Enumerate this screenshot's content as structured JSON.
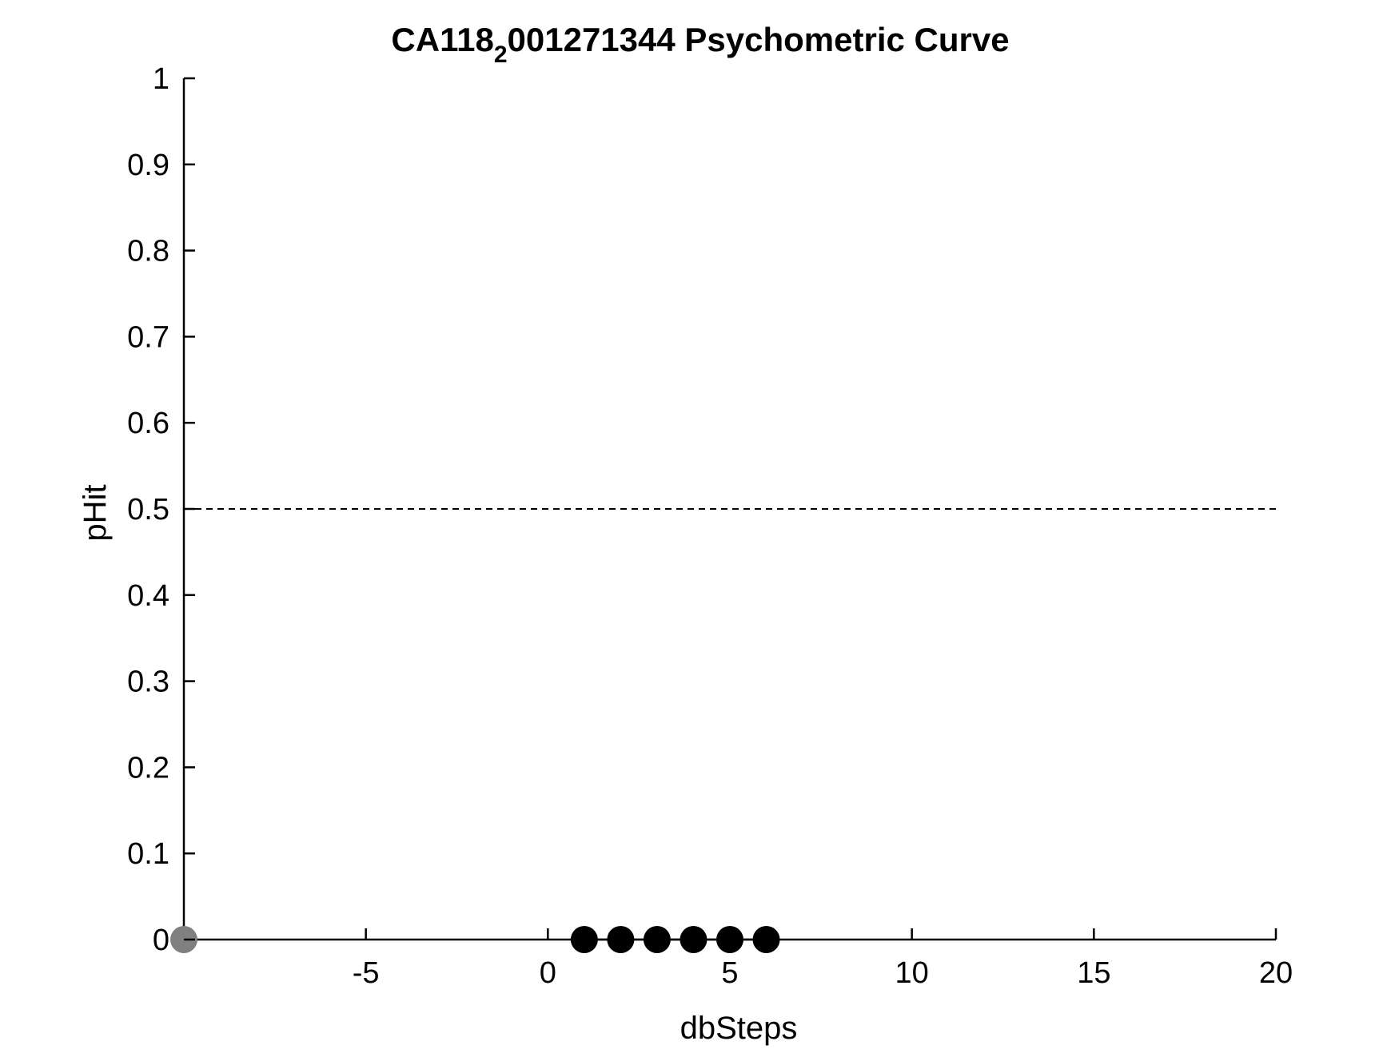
{
  "chart_data": {
    "type": "scatter",
    "title_main": "CA118",
    "title_subscript": "2",
    "title_rest": "001271344 Psychometric Curve",
    "xlabel": "dbSteps",
    "ylabel": "pHit",
    "xlim": [
      -10,
      20
    ],
    "ylim": [
      0,
      1
    ],
    "x_ticks": [
      -5,
      0,
      5,
      10,
      15,
      20
    ],
    "y_ticks": [
      0,
      0.1,
      0.2,
      0.3,
      0.4,
      0.5,
      0.6,
      0.7,
      0.8,
      0.9,
      1
    ],
    "x_tick_labels": [
      "-5",
      "0",
      "5",
      "10",
      "15",
      "20"
    ],
    "y_tick_labels": [
      "0",
      "0.1",
      "0.2",
      "0.3",
      "0.4",
      "0.5",
      "0.6",
      "0.7",
      "0.8",
      "0.9",
      "1"
    ],
    "reference_line": {
      "y": 0.5,
      "style": "dashed",
      "color": "#000000"
    },
    "series": [
      {
        "color": "#808080",
        "line": false,
        "points": [
          {
            "x": -10,
            "y": 0
          }
        ]
      },
      {
        "color": "#000000",
        "line": true,
        "points": [
          {
            "x": 1,
            "y": 0
          },
          {
            "x": 2,
            "y": 0
          },
          {
            "x": 3,
            "y": 0
          },
          {
            "x": 4,
            "y": 0
          },
          {
            "x": 5,
            "y": 0
          },
          {
            "x": 6,
            "y": 0
          }
        ]
      }
    ],
    "grid": false,
    "legend": "none"
  }
}
